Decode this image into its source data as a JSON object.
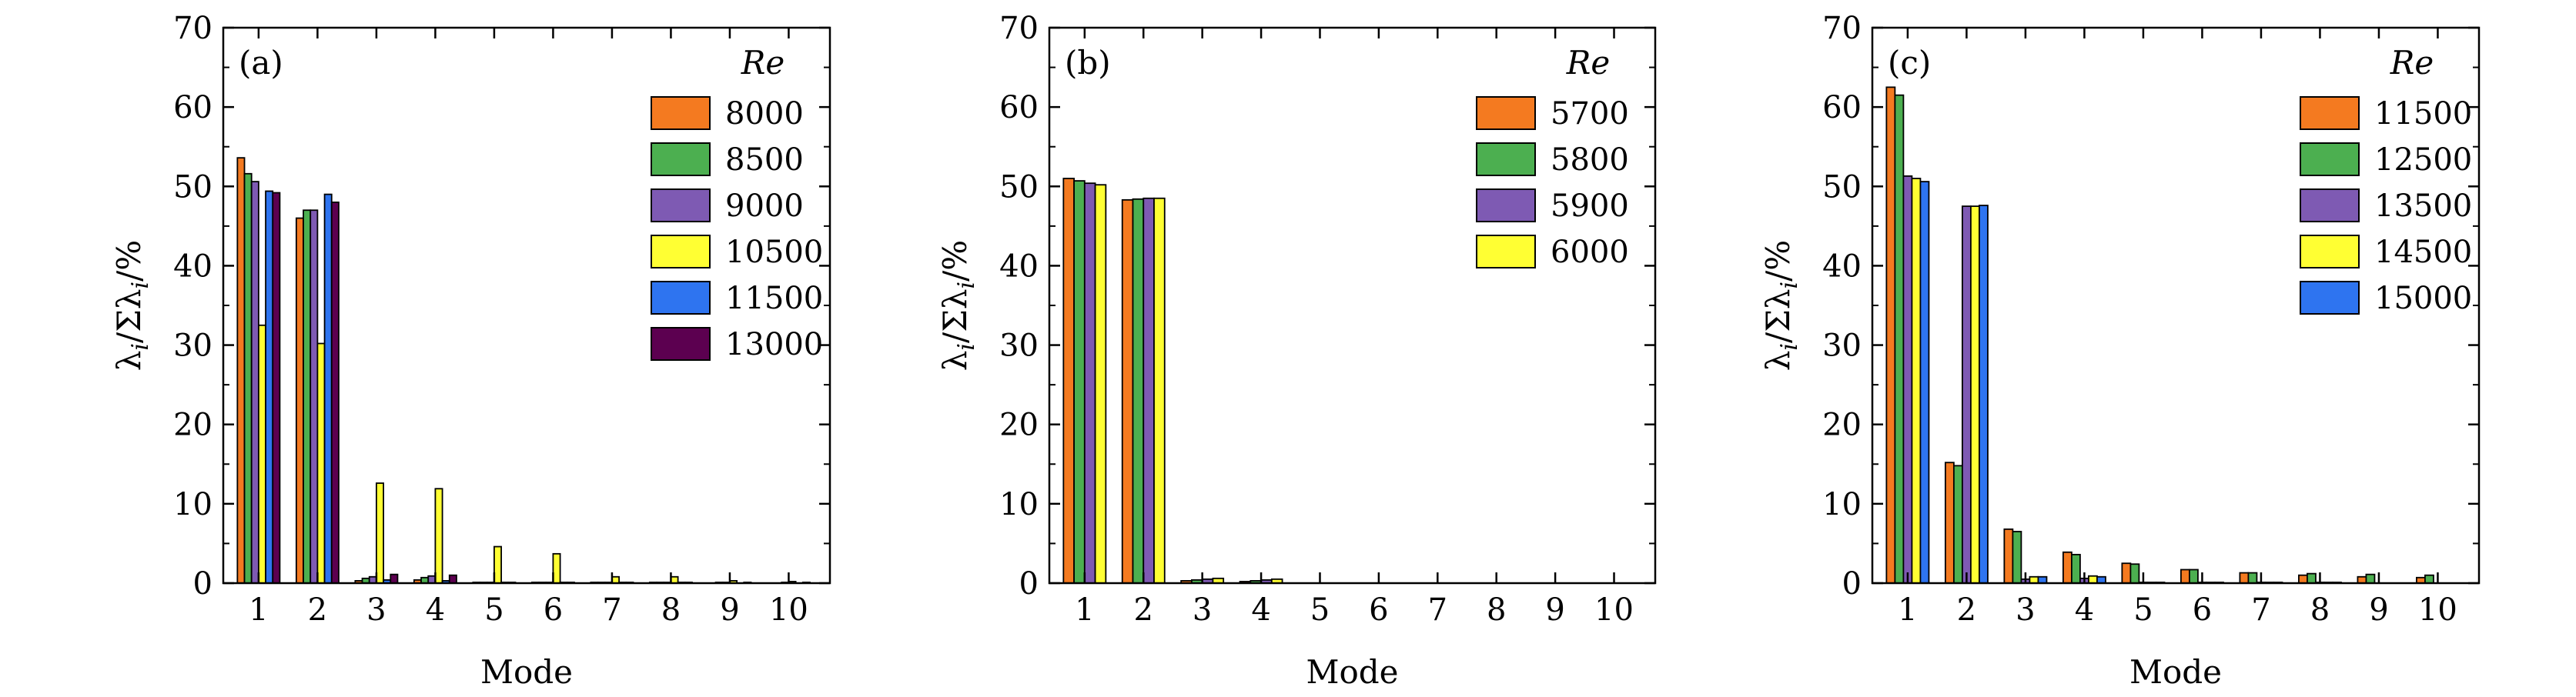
{
  "chart_data": [
    {
      "type": "bar",
      "panel_label": "(a)",
      "categories": [
        "1",
        "2",
        "3",
        "4",
        "5",
        "6",
        "7",
        "8",
        "9",
        "10"
      ],
      "xlabel": "Mode",
      "ylabel": "λi/Σλi/%",
      "ylim": [
        0,
        70
      ],
      "yticks": [
        0,
        10,
        20,
        30,
        40,
        50,
        60,
        70
      ],
      "legend_title": "Re",
      "legend_position": "top-right",
      "series": [
        {
          "name": "8000",
          "color": "#f47a20",
          "values": [
            53.6,
            46.0,
            0.3,
            0.4,
            0.1,
            0.1,
            0.1,
            0.1,
            0.0,
            0.0
          ]
        },
        {
          "name": "8500",
          "color": "#4caf50",
          "values": [
            51.6,
            47.0,
            0.6,
            0.7,
            0.1,
            0.1,
            0.1,
            0.1,
            0.1,
            0.0
          ]
        },
        {
          "name": "9000",
          "color": "#7e5ab3",
          "values": [
            50.6,
            47.0,
            0.8,
            0.9,
            0.1,
            0.1,
            0.1,
            0.1,
            0.1,
            0.1
          ]
        },
        {
          "name": "10500",
          "color": "#ffff33",
          "values": [
            32.5,
            30.2,
            12.6,
            11.9,
            4.6,
            3.7,
            0.8,
            0.8,
            0.3,
            0.2
          ]
        },
        {
          "name": "11500",
          "color": "#2e74f0",
          "values": [
            49.4,
            49.0,
            0.4,
            0.3,
            0.1,
            0.1,
            0.1,
            0.1,
            0.0,
            0.0
          ]
        },
        {
          "name": "13000",
          "color": "#5c0050",
          "values": [
            49.2,
            48.0,
            1.1,
            1.0,
            0.1,
            0.1,
            0.1,
            0.1,
            0.1,
            0.1
          ]
        }
      ]
    },
    {
      "type": "bar",
      "panel_label": "(b)",
      "categories": [
        "1",
        "2",
        "3",
        "4",
        "5",
        "6",
        "7",
        "8",
        "9",
        "10"
      ],
      "xlabel": "Mode",
      "ylabel": "λi/Σλi/%",
      "ylim": [
        0,
        70
      ],
      "yticks": [
        0,
        10,
        20,
        30,
        40,
        50,
        60,
        70
      ],
      "legend_title": "Re",
      "legend_position": "top-right",
      "series": [
        {
          "name": "5700",
          "color": "#f47a20",
          "values": [
            51.0,
            48.3,
            0.3,
            0.2,
            0.0,
            0.0,
            0.0,
            0.0,
            0.0,
            0.0
          ]
        },
        {
          "name": "5800",
          "color": "#4caf50",
          "values": [
            50.7,
            48.4,
            0.4,
            0.3,
            0.0,
            0.0,
            0.0,
            0.0,
            0.0,
            0.0
          ]
        },
        {
          "name": "5900",
          "color": "#7e5ab3",
          "values": [
            50.4,
            48.5,
            0.5,
            0.4,
            0.0,
            0.0,
            0.0,
            0.0,
            0.0,
            0.0
          ]
        },
        {
          "name": "6000",
          "color": "#ffff33",
          "values": [
            50.2,
            48.5,
            0.6,
            0.5,
            0.0,
            0.0,
            0.0,
            0.0,
            0.0,
            0.0
          ]
        }
      ]
    },
    {
      "type": "bar",
      "panel_label": "(c)",
      "categories": [
        "1",
        "2",
        "3",
        "4",
        "5",
        "6",
        "7",
        "8",
        "9",
        "10"
      ],
      "xlabel": "Mode",
      "ylabel": "λi/Σλi/%",
      "ylim": [
        0,
        70
      ],
      "yticks": [
        0,
        10,
        20,
        30,
        40,
        50,
        60,
        70
      ],
      "legend_title": "Re",
      "legend_position": "top-right",
      "series": [
        {
          "name": "11500",
          "color": "#f47a20",
          "values": [
            62.5,
            15.2,
            6.8,
            3.9,
            2.5,
            1.7,
            1.3,
            1.0,
            0.8,
            0.7
          ]
        },
        {
          "name": "12500",
          "color": "#4caf50",
          "values": [
            61.5,
            14.8,
            6.5,
            3.6,
            2.4,
            1.7,
            1.3,
            1.2,
            1.1,
            1.0
          ]
        },
        {
          "name": "13500",
          "color": "#7e5ab3",
          "values": [
            51.3,
            47.5,
            0.5,
            0.6,
            0.1,
            0.1,
            0.1,
            0.1,
            0.0,
            0.0
          ]
        },
        {
          "name": "14500",
          "color": "#ffff33",
          "values": [
            51.0,
            47.5,
            0.8,
            0.9,
            0.1,
            0.1,
            0.1,
            0.1,
            0.0,
            0.0
          ]
        },
        {
          "name": "15000",
          "color": "#2e74f0",
          "values": [
            50.6,
            47.6,
            0.8,
            0.8,
            0.1,
            0.1,
            0.1,
            0.1,
            0.0,
            0.0
          ]
        }
      ]
    }
  ]
}
